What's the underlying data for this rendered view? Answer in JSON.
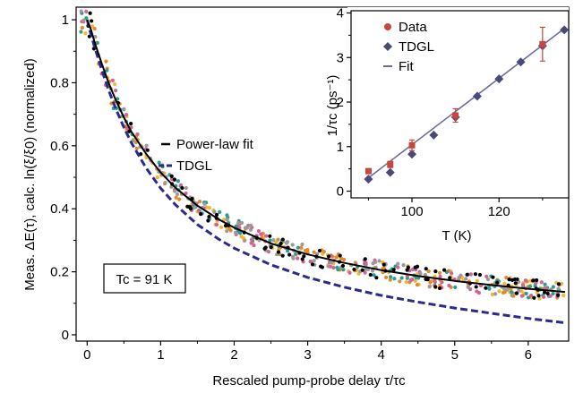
{
  "chart_data": [
    {
      "type": "scatter",
      "xlabel": "Rescaled pump-probe delay τ/τc",
      "ylabel": "Meas. ΔE(τ), calc. ln(ξ/ξ0)  (normalized)",
      "xlim": [
        -0.15,
        6.55
      ],
      "ylim": [
        -0.02,
        1.04
      ],
      "xticks": [
        "0",
        "1",
        "2",
        "3",
        "4",
        "5",
        "6"
      ],
      "yticks": [
        "0",
        "0.2",
        "0.4",
        "0.6",
        "0.8",
        "1"
      ],
      "annotation": "Tc = 91 K",
      "legend": {
        "placement": "upper-middle",
        "entries": [
          {
            "label": "Power-law fit",
            "color": "#000000",
            "style": "solid"
          },
          {
            "label": "TDGL",
            "color": "#2b2b8c",
            "style": "dashed"
          }
        ]
      },
      "series": [
        {
          "name": "Power-law fit",
          "style": "solid",
          "color": "#000000",
          "x": [
            0.0,
            0.05,
            0.1,
            0.2,
            0.3,
            0.4,
            0.5,
            0.6,
            0.8,
            1.0,
            1.2,
            1.5,
            1.8,
            2.0,
            2.5,
            3.0,
            3.5,
            4.0,
            4.5,
            5.0,
            5.5,
            6.0,
            6.5
          ],
          "y": [
            1.0,
            0.97,
            0.93,
            0.86,
            0.795,
            0.74,
            0.69,
            0.645,
            0.575,
            0.515,
            0.467,
            0.41,
            0.365,
            0.34,
            0.29,
            0.255,
            0.228,
            0.205,
            0.187,
            0.171,
            0.158,
            0.146,
            0.136
          ]
        },
        {
          "name": "TDGL",
          "style": "dashed",
          "color": "#2b2b8c",
          "x": [
            0.0,
            0.05,
            0.1,
            0.2,
            0.3,
            0.4,
            0.5,
            0.6,
            0.8,
            1.0,
            1.2,
            1.5,
            1.8,
            2.0,
            2.5,
            3.0,
            3.5,
            4.0,
            4.5,
            5.0,
            5.5,
            6.0,
            6.5
          ],
          "y": [
            1.0,
            0.955,
            0.915,
            0.84,
            0.772,
            0.712,
            0.658,
            0.61,
            0.53,
            0.465,
            0.413,
            0.35,
            0.302,
            0.275,
            0.222,
            0.182,
            0.151,
            0.125,
            0.104,
            0.085,
            0.068,
            0.052,
            0.038
          ]
        },
        {
          "name": "",
          "role": "measured-data",
          "colors": [
            "#000000",
            "#f2b632",
            "#e58a2c",
            "#2a9d8f",
            "#d4619a",
            "#9a9a9a"
          ],
          "x_range": [
            -0.1,
            6.5
          ],
          "follows": "Power-law fit",
          "scatter_amplitude": 0.03,
          "points_per_color": 95
        }
      ]
    },
    {
      "type": "scatter",
      "placement": "inset-top-right",
      "xlabel": "T  (K)",
      "ylabel": "1/τc  (ps⁻¹)",
      "xlim": [
        86,
        136
      ],
      "ylim": [
        -0.15,
        4.05
      ],
      "xticks": [
        "100",
        "120"
      ],
      "yticks": [
        "0",
        "1",
        "2",
        "3",
        "4"
      ],
      "legend": {
        "placement": "top-left",
        "entries": [
          {
            "label": "Data",
            "color": "#c8473c",
            "marker": "circle"
          },
          {
            "label": "TDGL",
            "color": "#4a4a7a",
            "marker": "diamond"
          },
          {
            "label": "Fit",
            "color": "#6a6aa0",
            "style": "dashed"
          }
        ]
      },
      "series": [
        {
          "name": "Data",
          "color": "#c8473c",
          "x": [
            90,
            95,
            100,
            110,
            130
          ],
          "y": [
            0.45,
            0.6,
            1.03,
            1.7,
            3.3
          ],
          "err": [
            0.05,
            0.07,
            0.12,
            0.15,
            0.38
          ]
        },
        {
          "name": "TDGL",
          "color": "#4a4a7a",
          "x": [
            90,
            95,
            100,
            105,
            110,
            115,
            120,
            125,
            130,
            135
          ],
          "y": [
            0.27,
            0.42,
            0.83,
            1.26,
            1.66,
            2.13,
            2.52,
            2.9,
            3.26,
            3.62
          ]
        },
        {
          "name": "Fit",
          "color": "#6a6aa0",
          "x": [
            90,
            135
          ],
          "y": [
            0.3,
            3.65
          ]
        }
      ]
    }
  ]
}
